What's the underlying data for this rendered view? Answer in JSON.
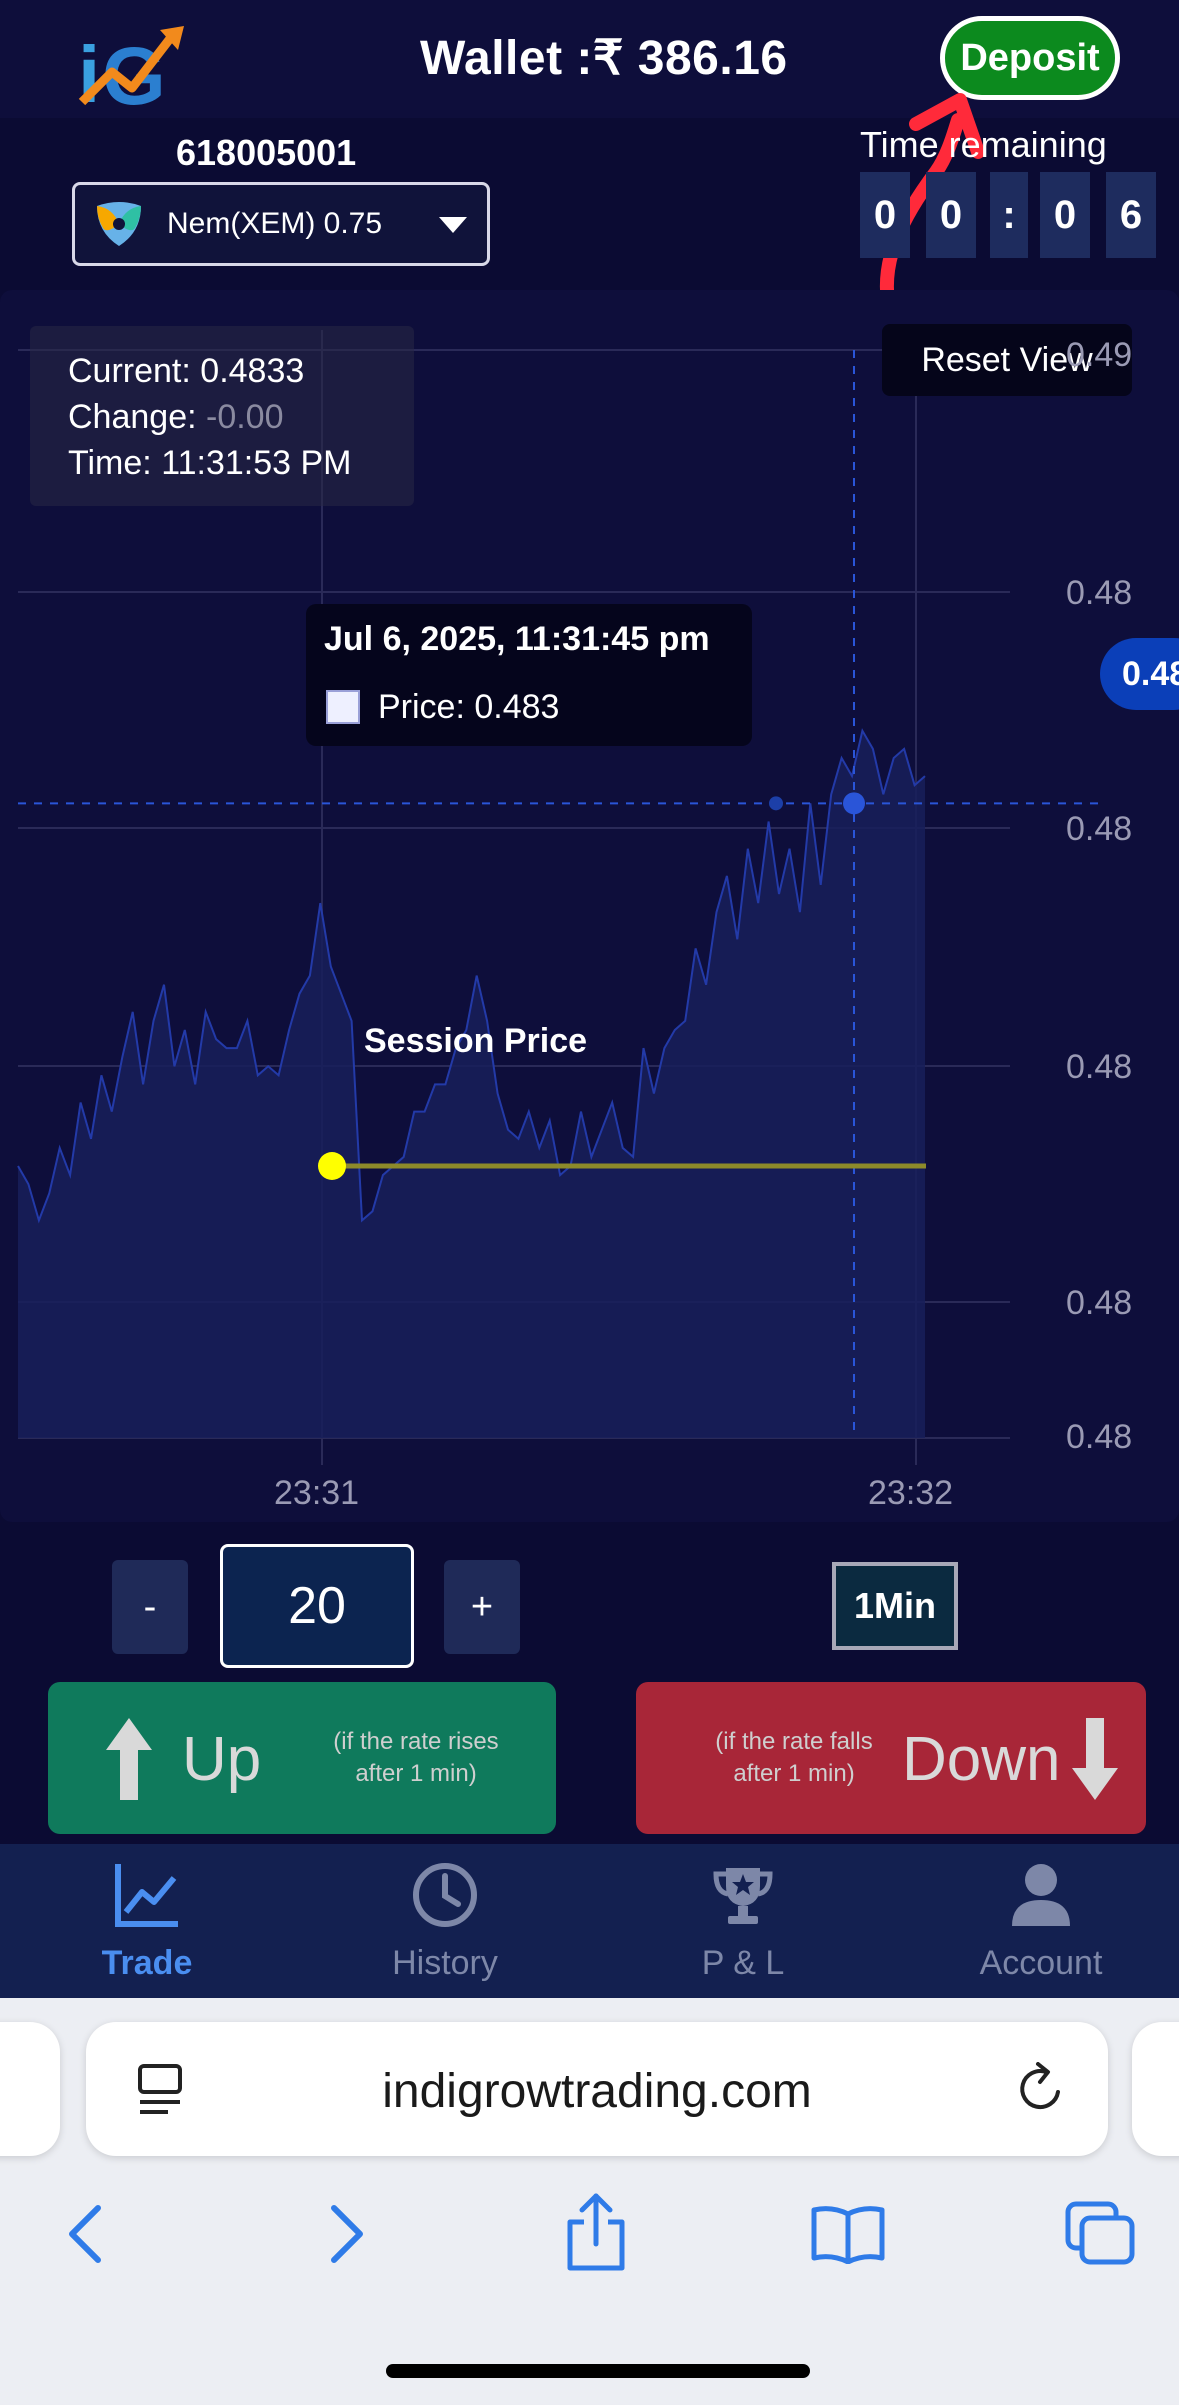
{
  "header": {
    "wallet_label": "Wallet :₹ 386.16",
    "deposit_label": "Deposit",
    "account_id": "618005001",
    "asset": {
      "name": "Nem(XEM) 0.75",
      "icon": "nem-coin-icon"
    },
    "timer": {
      "label": "Time remaining",
      "digits": [
        "0",
        "0",
        ":",
        "0",
        "6"
      ]
    }
  },
  "chart_data": {
    "type": "area",
    "info": {
      "current_label": "Current:",
      "current_value": "0.4833",
      "change_label": "Change:",
      "change_value": "-0.00",
      "time_label": "Time:",
      "time_value": "11:31:53 PM"
    },
    "reset_view_label": "Reset View",
    "tooltip": {
      "date": "Jul 6, 2025, 11:31:45 pm",
      "price": "Price: 0.483"
    },
    "session_label": "Session Price",
    "price_badge": "0.48",
    "y_ticks": [
      "0.49",
      "0.48",
      "0.48",
      "0.48",
      "0.48",
      "0.48"
    ],
    "x_ticks": [
      "23:31",
      "23:32"
    ],
    "ylim": [
      0.4826,
      0.4838
    ],
    "session_price": 0.4829,
    "crosshair_price": 0.4833,
    "values": [
      0.4829,
      0.48288,
      0.48284,
      0.48287,
      0.48292,
      0.48289,
      0.48297,
      0.48293,
      0.483,
      0.48296,
      0.48302,
      0.48307,
      0.48299,
      0.48306,
      0.4831,
      0.48301,
      0.48305,
      0.48299,
      0.48307,
      0.48304,
      0.48303,
      0.48303,
      0.48306,
      0.483,
      0.48301,
      0.483,
      0.48305,
      0.48309,
      0.48311,
      0.48319,
      0.48312,
      0.48309,
      0.48306,
      0.48284,
      0.48285,
      0.48289,
      0.4829,
      0.48291,
      0.48296,
      0.48296,
      0.48299,
      0.48299,
      0.48303,
      0.48305,
      0.48311,
      0.48306,
      0.48298,
      0.48294,
      0.48293,
      0.48296,
      0.48292,
      0.48295,
      0.48289,
      0.4829,
      0.48296,
      0.48291,
      0.48294,
      0.48297,
      0.48292,
      0.48291,
      0.48303,
      0.48298,
      0.48303,
      0.48305,
      0.48306,
      0.48314,
      0.4831,
      0.48318,
      0.48322,
      0.48315,
      0.48325,
      0.48319,
      0.48328,
      0.4832,
      0.48325,
      0.48318,
      0.4833,
      0.48321,
      0.48331,
      0.48335,
      0.48333,
      0.48338,
      0.48336,
      0.48331,
      0.48335,
      0.48336,
      0.48332,
      0.48333
    ]
  },
  "controls": {
    "minus_label": "-",
    "amount_value": "20",
    "plus_label": "+",
    "interval_label": "1Min",
    "up": {
      "label": "Up",
      "hint_line1": "(if the rate rises",
      "hint_line2": "after 1 min)",
      "icon": "arrow-up-icon"
    },
    "down": {
      "label": "Down",
      "hint_line1": "(if the rate falls",
      "hint_line2": "after 1 min)",
      "icon": "arrow-down-icon"
    }
  },
  "nav": [
    {
      "label": "Trade",
      "icon": "chart-line-icon",
      "active": true
    },
    {
      "label": "History",
      "icon": "clock-icon",
      "active": false
    },
    {
      "label": "P & L",
      "icon": "trophy-icon",
      "active": false
    },
    {
      "label": "Account",
      "icon": "user-icon",
      "active": false
    }
  ],
  "browser": {
    "url": "indigrowtrading.com"
  },
  "colors": {
    "accent_active": "#4a8ef0",
    "deposit_green": "#0c8a1e",
    "up_green": "#0f7a5c",
    "down_red": "#a82638",
    "session_yellow": "#ffff00"
  }
}
